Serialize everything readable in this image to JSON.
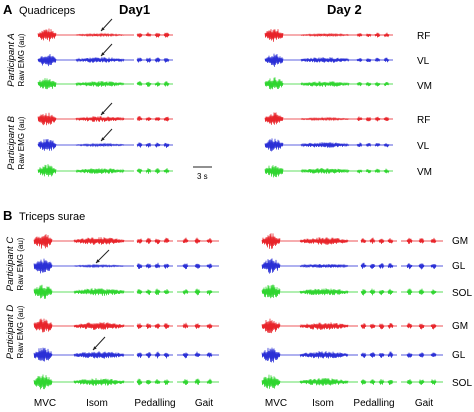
{
  "panel_a": {
    "letter": "A",
    "title": "Quadriceps",
    "day1": "Day1",
    "day2": "Day 2",
    "participant_a": "Participant A",
    "participant_b": "Participant B",
    "raw_emg_label": "Raw EMG (au)",
    "muscles": [
      "RF",
      "VL",
      "VM"
    ],
    "scale_bar": "3 s"
  },
  "panel_b": {
    "letter": "B",
    "title": "Triceps surae",
    "participant_c": "Participant C",
    "participant_d": "Participant D",
    "raw_emg_label": "Raw EMG (au)",
    "muscles": [
      "GM",
      "GL",
      "SOL"
    ]
  },
  "tasks": [
    "MVC",
    "Isom",
    "Pedalling",
    "Gait",
    "MVC",
    "Isom",
    "Pedalling",
    "Gait"
  ],
  "colors": {
    "red": "#e8242a",
    "blue": "#2a2fd6",
    "green": "#2fd52f",
    "arrow": "#222222"
  }
}
